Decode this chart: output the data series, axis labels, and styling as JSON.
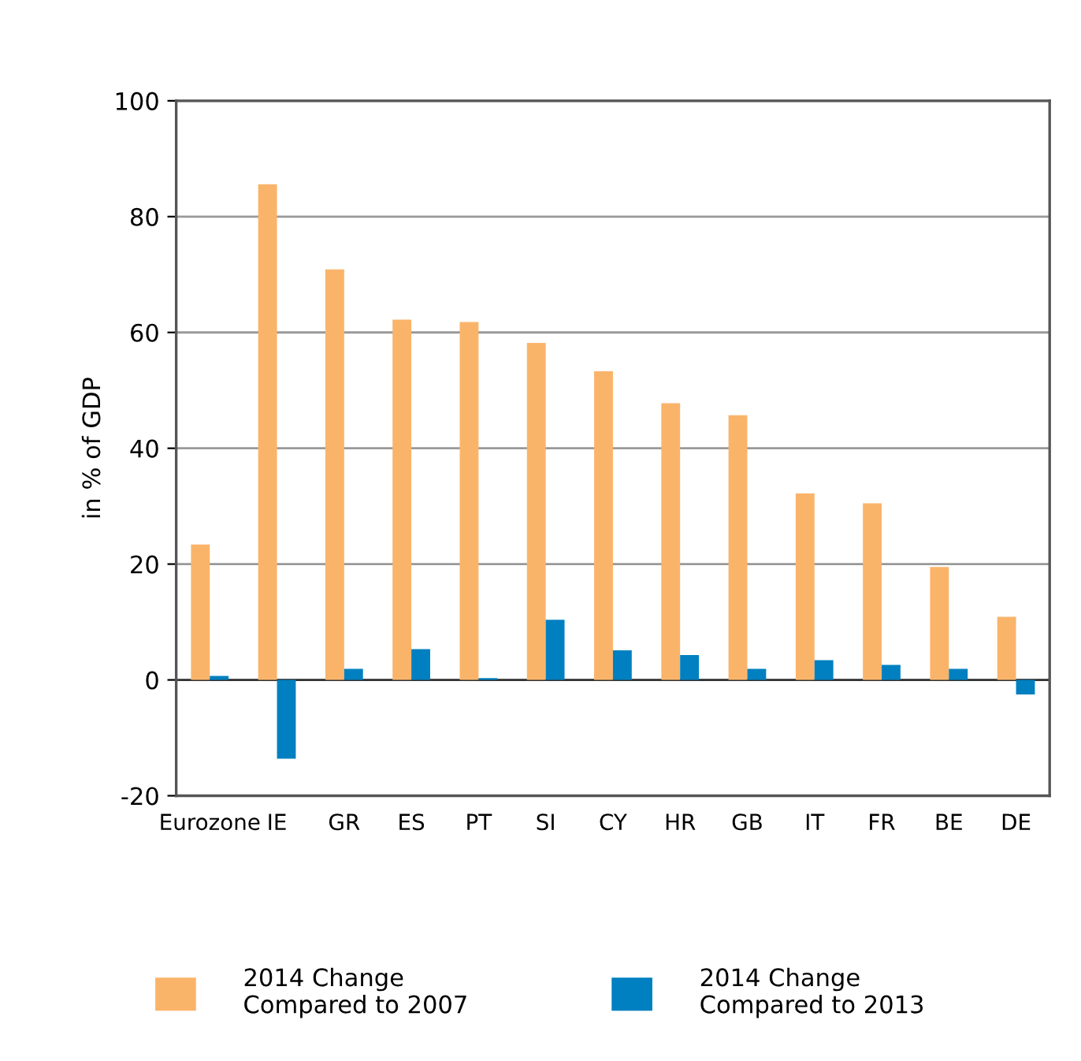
{
  "chart_data": {
    "type": "bar",
    "ylabel": "in % of GDP",
    "categories": [
      "Eurozone",
      "IE",
      "GR",
      "ES",
      "PT",
      "SI",
      "CY",
      "HR",
      "GB",
      "IT",
      "FR",
      "BE",
      "DE"
    ],
    "series": [
      {
        "name": "2014 Change\nCompared to 2007",
        "color": "#fab46a",
        "values": [
          23.4,
          85.6,
          70.9,
          62.2,
          61.8,
          58.2,
          53.3,
          47.8,
          45.7,
          32.2,
          30.5,
          19.5,
          10.9
        ]
      },
      {
        "name": "2014 Change\nCompared to 2013",
        "color": "#0080c0",
        "values": [
          0.7,
          -13.6,
          1.9,
          5.3,
          0.3,
          10.4,
          5.1,
          4.3,
          1.9,
          3.4,
          2.6,
          1.9,
          -2.5
        ]
      }
    ],
    "ylim": [
      -20,
      100
    ],
    "yticks": [
      -20,
      0,
      20,
      40,
      60,
      80,
      100
    ],
    "grid": "y",
    "legend": "bottom"
  }
}
